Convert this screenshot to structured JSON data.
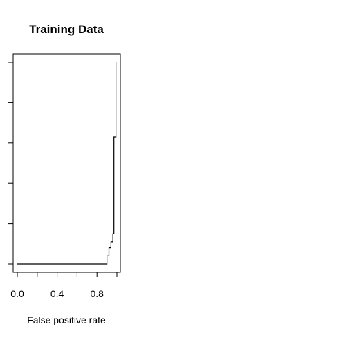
{
  "chart_data": {
    "type": "line",
    "title": "Training Data",
    "xlabel": "False positive rate",
    "ylabel": "",
    "xlim": [
      0,
      1
    ],
    "ylim": [
      0,
      1
    ],
    "x_ticks": [
      0.0,
      0.2,
      0.4,
      0.6,
      0.8,
      1.0
    ],
    "x_tick_labels": [
      "0.0",
      "0.4",
      "0.8"
    ],
    "x_tick_labels_at": [
      0.0,
      0.4,
      0.8
    ],
    "y_ticks": [
      0.0,
      0.2,
      0.4,
      0.6,
      0.8,
      1.0
    ],
    "y_tick_labels": [],
    "grid": false,
    "legend": "none",
    "series": [
      {
        "x": [
          0.0,
          0.9,
          0.9,
          0.92,
          0.92,
          0.94,
          0.94,
          0.96,
          0.96,
          0.97,
          0.97,
          0.99,
          0.99
        ],
        "y": [
          0.0,
          0.0,
          0.04,
          0.04,
          0.08,
          0.08,
          0.11,
          0.11,
          0.15,
          0.15,
          0.63,
          0.63,
          1.0
        ]
      }
    ]
  }
}
